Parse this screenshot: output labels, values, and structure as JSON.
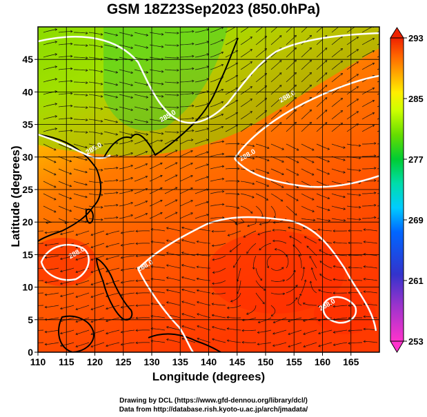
{
  "title": "GSM 18Z23Sep2023 (850.0hPa)",
  "x_axis": {
    "label": "Longitude (degrees)",
    "range": [
      110,
      170
    ],
    "ticks": [
      "110",
      "115",
      "120",
      "125",
      "130",
      "135",
      "140",
      "145",
      "150",
      "155",
      "160",
      "165"
    ]
  },
  "y_axis": {
    "label": "Latitude  (degrees)",
    "range": [
      0,
      50
    ],
    "ticks": [
      "0",
      "5",
      "10",
      "15",
      "20",
      "25",
      "30",
      "35",
      "40",
      "45"
    ]
  },
  "colorbar": {
    "min": 253,
    "max": 293,
    "ticks": [
      "293",
      "285",
      "277",
      "269",
      "261",
      "253"
    ],
    "colors": [
      "#ff33cc",
      "#9933cc",
      "#3333cc",
      "#0066ff",
      "#00ccff",
      "#00ddaa",
      "#00cc33",
      "#66dd00",
      "#ccff00",
      "#ffee00",
      "#ffaa00",
      "#ff7700",
      "#ff4400",
      "#ee2200"
    ]
  },
  "contours": [
    {
      "label": "285.0",
      "lon": 133,
      "lat": 36
    },
    {
      "label": "285.0",
      "lon": 120,
      "lat": 31
    },
    {
      "label": "288.0",
      "lon": 154,
      "lat": 39
    },
    {
      "label": "288.0",
      "lon": 147,
      "lat": 30
    },
    {
      "label": "288.0",
      "lon": 117,
      "lat": 15
    },
    {
      "label": "288.0",
      "lon": 129,
      "lat": 13
    },
    {
      "label": "288.0",
      "lon": 161,
      "lat": 7
    }
  ],
  "credits": {
    "line1": "Drawing by DCL (https://www.gfd-dennou.org/library/dcl/)",
    "line2": "Data from http://database.rish.kyoto-u.ac.jp/arch/jmadata/"
  }
}
